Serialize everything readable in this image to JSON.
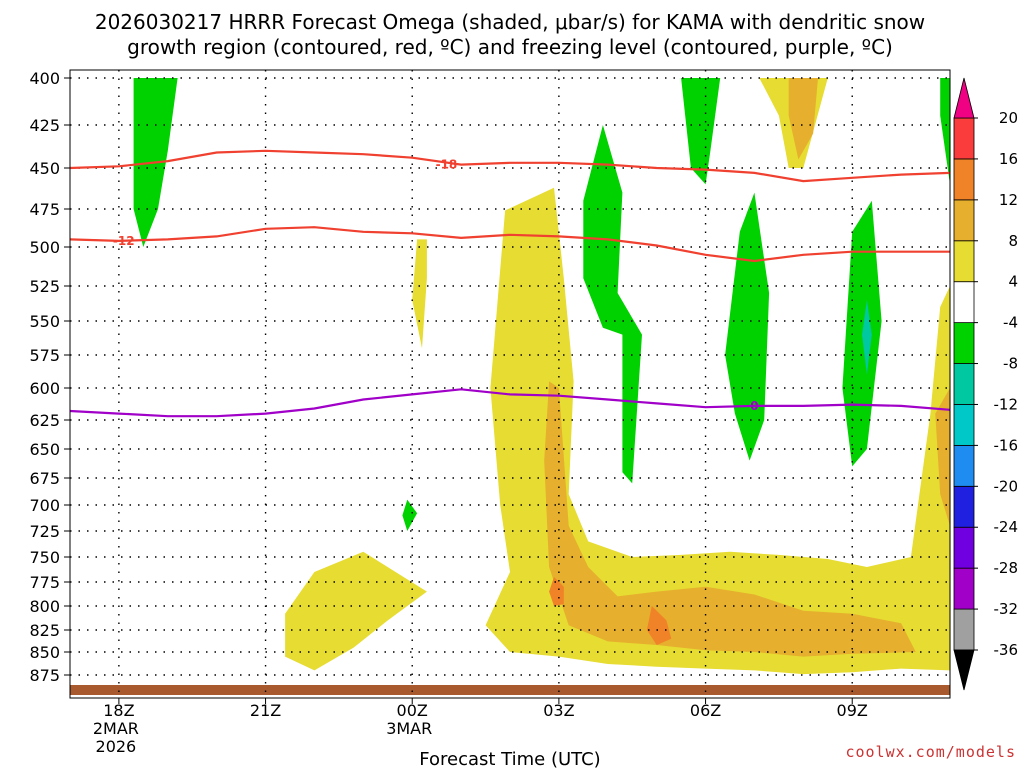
{
  "chart_data": {
    "type": "time-height-contour",
    "title_line1": "2026030217 HRRR Forecast Omega (shaded, μbar/s) for KAMA with dendritic snow",
    "title_line2": "growth region (contoured, red, ºC) and freezing level (contoured, purple, ºC)",
    "xlabel": "Forecast Time (UTC)",
    "credit": "coolwx.com/models",
    "x_range": [
      17,
      35
    ],
    "y_range": [
      400,
      880
    ],
    "y_ticks": [
      "400",
      "425",
      "450",
      "475",
      "500",
      "525",
      "550",
      "575",
      "600",
      "625",
      "650",
      "675",
      "700",
      "725",
      "750",
      "775",
      "800",
      "825",
      "850",
      "875"
    ],
    "x_ticks": [
      {
        "hour": 18,
        "line1": "18Z",
        "line2": "2MAR",
        "line3": "2026"
      },
      {
        "hour": 21,
        "line1": "21Z",
        "line2": "",
        "line3": ""
      },
      {
        "hour": 24,
        "line1": "00Z",
        "line2": "3MAR",
        "line3": ""
      },
      {
        "hour": 27,
        "line1": "03Z",
        "line2": "",
        "line3": ""
      },
      {
        "hour": 30,
        "line1": "06Z",
        "line2": "",
        "line3": ""
      },
      {
        "hour": 33,
        "line1": "09Z",
        "line2": "",
        "line3": ""
      }
    ],
    "colorbar": {
      "colors": [
        "#ffffff",
        "#a0a0a0",
        "#a000c8",
        "#7000e0",
        "#2020e0",
        "#1e8cf0",
        "#00c8c8",
        "#00c8a0",
        "#00d200",
        "#ffffff",
        "#e6dc32",
        "#e6af2d",
        "#f08228",
        "#fa3c3c",
        "#f00082"
      ],
      "labels": [
        "-36",
        "-32",
        "-28",
        "-24",
        "-20",
        "-16",
        "-12",
        "-8",
        "-4",
        "4",
        "8",
        "12",
        "16",
        "20"
      ]
    },
    "contours": [
      {
        "name": "dgz-minus18",
        "label": "-18",
        "color": "#f04030",
        "points": [
          [
            17,
            450
          ],
          [
            18,
            449
          ],
          [
            19,
            446
          ],
          [
            20,
            441
          ],
          [
            21,
            440
          ],
          [
            22,
            441
          ],
          [
            23,
            442
          ],
          [
            24,
            444
          ],
          [
            25,
            448
          ],
          [
            26,
            447
          ],
          [
            27,
            447
          ],
          [
            28,
            448
          ],
          [
            29,
            450
          ],
          [
            30,
            451
          ],
          [
            31,
            453
          ],
          [
            32,
            458
          ],
          [
            33,
            456
          ],
          [
            34,
            454
          ],
          [
            35,
            453
          ]
        ],
        "label_at": [
          24.7,
          448
        ]
      },
      {
        "name": "dgz-minus12",
        "label": "-12",
        "color": "#f04030",
        "points": [
          [
            17,
            495
          ],
          [
            18,
            496
          ],
          [
            19,
            495
          ],
          [
            20,
            493
          ],
          [
            21,
            488
          ],
          [
            22,
            487
          ],
          [
            23,
            490
          ],
          [
            24,
            491
          ],
          [
            25,
            494
          ],
          [
            26,
            492
          ],
          [
            27,
            493
          ],
          [
            28,
            495
          ],
          [
            29,
            499
          ],
          [
            30,
            505
          ],
          [
            31,
            509
          ],
          [
            32,
            505
          ],
          [
            33,
            503
          ],
          [
            34,
            503
          ],
          [
            35,
            503
          ]
        ],
        "label_at": [
          18.1,
          496
        ]
      },
      {
        "name": "freezing-level-0",
        "label": "0",
        "color": "#a000c8",
        "points": [
          [
            17,
            618
          ],
          [
            18,
            620
          ],
          [
            19,
            622
          ],
          [
            20,
            622
          ],
          [
            21,
            620
          ],
          [
            22,
            616
          ],
          [
            23,
            609
          ],
          [
            24,
            605
          ],
          [
            25,
            601
          ],
          [
            26,
            605
          ],
          [
            27,
            606
          ],
          [
            28,
            609
          ],
          [
            29,
            612
          ],
          [
            30,
            615
          ],
          [
            31,
            614
          ],
          [
            32,
            614
          ],
          [
            33,
            613
          ],
          [
            34,
            614
          ],
          [
            35,
            617
          ]
        ],
        "label_at": [
          31.0,
          614
        ]
      }
    ],
    "shaded_regions": [
      {
        "label": "omega-4to8",
        "color": "#e6dc32",
        "points": [
          [
            25.9,
            476
          ],
          [
            26.9,
            462
          ],
          [
            27.1,
            520
          ],
          [
            27.3,
            595
          ],
          [
            27.2,
            690
          ],
          [
            27.6,
            735
          ],
          [
            28.5,
            750
          ],
          [
            29.5,
            748
          ],
          [
            30.5,
            745
          ],
          [
            31.5,
            748
          ],
          [
            32.5,
            752
          ],
          [
            33.3,
            760
          ],
          [
            34.2,
            750
          ],
          [
            34.6,
            620
          ],
          [
            34.8,
            540
          ],
          [
            35,
            525
          ],
          [
            35,
            870
          ],
          [
            34,
            868
          ],
          [
            33,
            872
          ],
          [
            32,
            874
          ],
          [
            31,
            870
          ],
          [
            30,
            868
          ],
          [
            29,
            866
          ],
          [
            28,
            863
          ],
          [
            27,
            855
          ],
          [
            26,
            850
          ],
          [
            25.5,
            820
          ],
          [
            26,
            765
          ],
          [
            25.8,
            700
          ],
          [
            25.6,
            600
          ],
          [
            25.9,
            476
          ]
        ]
      },
      {
        "label": "omega-4to8",
        "color": "#e6dc32",
        "points": [
          [
            21.4,
            808
          ],
          [
            22,
            765
          ],
          [
            23,
            745
          ],
          [
            24.3,
            785
          ],
          [
            23.5,
            815
          ],
          [
            22.8,
            845
          ],
          [
            22,
            870
          ],
          [
            21.4,
            855
          ],
          [
            21.4,
            808
          ]
        ]
      },
      {
        "label": "omega-4to8",
        "color": "#e6dc32",
        "points": [
          [
            24.1,
            495
          ],
          [
            24.3,
            495
          ],
          [
            24.3,
            520
          ],
          [
            24.2,
            570
          ],
          [
            24.0,
            535
          ],
          [
            24.1,
            495
          ]
        ]
      },
      {
        "label": "omega-4to8",
        "color": "#e6dc32",
        "points": [
          [
            31.1,
            400
          ],
          [
            32.5,
            400
          ],
          [
            32,
            450
          ],
          [
            31.7,
            450
          ],
          [
            31.5,
            420
          ],
          [
            31.1,
            400
          ]
        ]
      },
      {
        "label": "omega-8to12",
        "color": "#e6af2d",
        "points": [
          [
            26.8,
            595
          ],
          [
            27,
            600
          ],
          [
            27.2,
            720
          ],
          [
            27.6,
            760
          ],
          [
            28.2,
            790
          ],
          [
            29,
            785
          ],
          [
            30,
            780
          ],
          [
            31,
            788
          ],
          [
            32,
            805
          ],
          [
            33,
            808
          ],
          [
            34,
            818
          ],
          [
            34.3,
            850
          ],
          [
            33,
            852
          ],
          [
            32,
            855
          ],
          [
            31,
            850
          ],
          [
            30,
            848
          ],
          [
            29,
            842
          ],
          [
            28,
            838
          ],
          [
            27.2,
            820
          ],
          [
            26.8,
            760
          ],
          [
            26.7,
            660
          ],
          [
            26.8,
            595
          ]
        ]
      },
      {
        "label": "omega-8to12",
        "color": "#e6af2d",
        "points": [
          [
            34.7,
            620
          ],
          [
            35,
            600
          ],
          [
            35,
            720
          ],
          [
            34.8,
            690
          ],
          [
            34.7,
            620
          ]
        ]
      },
      {
        "label": "omega-8to12",
        "color": "#e6af2d",
        "points": [
          [
            31.7,
            400
          ],
          [
            32.3,
            400
          ],
          [
            32.2,
            430
          ],
          [
            31.9,
            445
          ],
          [
            31.7,
            420
          ],
          [
            31.7,
            400
          ]
        ]
      },
      {
        "label": "omega-12to16",
        "color": "#f08228",
        "points": [
          [
            28.9,
            800
          ],
          [
            29.2,
            815
          ],
          [
            29.3,
            835
          ],
          [
            29.0,
            842
          ],
          [
            28.8,
            825
          ],
          [
            28.9,
            800
          ]
        ]
      },
      {
        "label": "omega-12to16",
        "color": "#f08228",
        "points": [
          [
            26.9,
            770
          ],
          [
            27.1,
            780
          ],
          [
            27.1,
            798
          ],
          [
            26.9,
            800
          ],
          [
            26.8,
            785
          ],
          [
            26.9,
            770
          ]
        ]
      },
      {
        "label": "omega-minus4to-8",
        "color": "#00d200",
        "points": [
          [
            18.3,
            400
          ],
          [
            19.2,
            400
          ],
          [
            19.0,
            440
          ],
          [
            18.8,
            475
          ],
          [
            18.5,
            500
          ],
          [
            18.3,
            475
          ],
          [
            18.3,
            400
          ]
        ]
      },
      {
        "label": "omega-minus4to-8",
        "color": "#00d200",
        "points": [
          [
            27.5,
            470
          ],
          [
            27.9,
            425
          ],
          [
            28.3,
            465
          ],
          [
            28.2,
            530
          ],
          [
            28.7,
            560
          ],
          [
            28.5,
            680
          ],
          [
            28.3,
            670
          ],
          [
            28.3,
            560
          ],
          [
            27.9,
            555
          ],
          [
            27.5,
            520
          ],
          [
            27.5,
            470
          ]
        ]
      },
      {
        "label": "omega-minus4to-8",
        "color": "#00d200",
        "points": [
          [
            29.5,
            400
          ],
          [
            30.3,
            400
          ],
          [
            30.1,
            440
          ],
          [
            30.0,
            460
          ],
          [
            29.7,
            450
          ],
          [
            29.5,
            400
          ]
        ]
      },
      {
        "label": "omega-minus4to-8",
        "color": "#00d200",
        "points": [
          [
            30.7,
            490
          ],
          [
            31.0,
            465
          ],
          [
            31.3,
            530
          ],
          [
            31.2,
            625
          ],
          [
            30.9,
            660
          ],
          [
            30.6,
            620
          ],
          [
            30.4,
            575
          ],
          [
            30.7,
            490
          ]
        ]
      },
      {
        "label": "omega-minus4to-8",
        "color": "#00d200",
        "points": [
          [
            33.0,
            490
          ],
          [
            33.4,
            470
          ],
          [
            33.6,
            550
          ],
          [
            33.3,
            650
          ],
          [
            33.0,
            665
          ],
          [
            32.8,
            600
          ],
          [
            33.0,
            490
          ]
        ]
      },
      {
        "label": "omega-minus4to-8",
        "color": "#00d200",
        "points": [
          [
            23.9,
            695
          ],
          [
            24.1,
            708
          ],
          [
            23.9,
            725
          ],
          [
            23.8,
            710
          ],
          [
            23.9,
            695
          ]
        ]
      },
      {
        "label": "omega-minus4to-8",
        "color": "#00d200",
        "points": [
          [
            34.8,
            400
          ],
          [
            35,
            400
          ],
          [
            35,
            460
          ],
          [
            34.8,
            420
          ],
          [
            34.8,
            400
          ]
        ]
      },
      {
        "label": "omega-minus8to-12",
        "color": "#00c8a0",
        "points": [
          [
            33.3,
            535
          ],
          [
            33.4,
            560
          ],
          [
            33.3,
            590
          ],
          [
            33.2,
            560
          ],
          [
            33.3,
            535
          ]
        ]
      }
    ]
  }
}
